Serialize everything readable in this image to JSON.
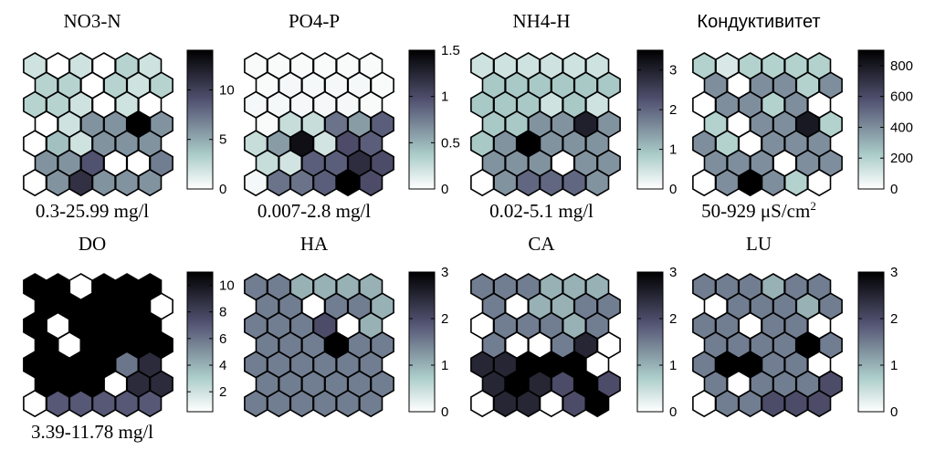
{
  "chart_data": [
    {
      "type": "heatmap",
      "title": "NO3-N",
      "range_label": "0.3-25.99 mg/l",
      "colorbar": {
        "min": 0,
        "max": 14,
        "ticks": [
          0,
          5,
          10
        ],
        "colormap": "bone-reversed"
      },
      "grid": [
        [
          2,
          0,
          2,
          0,
          3,
          2
        ],
        [
          3,
          3,
          0,
          3,
          2,
          3
        ],
        [
          3,
          3,
          2,
          0,
          2,
          0
        ],
        [
          0,
          2,
          6,
          6,
          14,
          6
        ],
        [
          0,
          4,
          2,
          6,
          6,
          6
        ],
        [
          6,
          6,
          9,
          0,
          0,
          7
        ],
        [
          0,
          6,
          11,
          6,
          6,
          6
        ]
      ]
    },
    {
      "type": "heatmap",
      "title": "PO4-P",
      "range_label": "0.007-2.8 mg/l",
      "colorbar": {
        "min": 0,
        "max": 1.5,
        "ticks": [
          0,
          0.5,
          1,
          1.5
        ],
        "colormap": "bone-reversed"
      },
      "grid": [
        [
          0.03,
          0.03,
          0.03,
          0.03,
          0.03,
          0.03
        ],
        [
          0.03,
          0.05,
          0.05,
          0.05,
          0.05,
          0.03
        ],
        [
          0.05,
          0.05,
          0.05,
          0.05,
          0.05,
          0.03
        ],
        [
          0.03,
          0.25,
          0.25,
          0.8,
          0.6,
          0.9
        ],
        [
          0.25,
          0.6,
          1.4,
          0.2,
          1.0,
          0.9
        ],
        [
          0.25,
          0.2,
          0.9,
          0.9,
          1.2,
          1.0
        ],
        [
          0.05,
          0.8,
          0.8,
          0.9,
          1.5,
          1.0
        ]
      ]
    },
    {
      "type": "heatmap",
      "title": "NH4-H",
      "range_label": "0.02-5.1 mg/l",
      "colorbar": {
        "min": 0,
        "max": 3.5,
        "ticks": [
          0,
          1,
          2,
          3
        ],
        "colormap": "bone-reversed"
      },
      "grid": [
        [
          0.5,
          0.5,
          0.5,
          0.5,
          0.5,
          0.5
        ],
        [
          0.9,
          0.9,
          0.9,
          0.9,
          0.9,
          0.9
        ],
        [
          0.9,
          0.9,
          0.9,
          0.5,
          0.9,
          0.5
        ],
        [
          0.9,
          0.9,
          1.5,
          1.5,
          3.0,
          1.5
        ],
        [
          0.9,
          1.5,
          3.5,
          1.5,
          1.5,
          1.5
        ],
        [
          1.5,
          1.5,
          1.5,
          0.0,
          1.5,
          1.5
        ],
        [
          0.0,
          1.5,
          2.0,
          2.0,
          2.0,
          1.5
        ]
      ]
    },
    {
      "type": "heatmap",
      "title": "Кондуктивитет",
      "range_label": "50-929 μS/cm²",
      "colorbar": {
        "min": 0,
        "max": 900,
        "ticks": [
          0,
          200,
          400,
          600,
          800
        ],
        "colormap": "bone-reversed"
      },
      "grid": [
        [
          200,
          100,
          200,
          200,
          200,
          200
        ],
        [
          400,
          0,
          400,
          400,
          200,
          400
        ],
        [
          0,
          400,
          400,
          200,
          400,
          0
        ],
        [
          200,
          0,
          400,
          400,
          800,
          200
        ],
        [
          400,
          200,
          0,
          400,
          400,
          400
        ],
        [
          400,
          400,
          400,
          0,
          400,
          400
        ],
        [
          0,
          400,
          900,
          400,
          200,
          0
        ]
      ]
    },
    {
      "type": "heatmap",
      "title": "DO",
      "range_label": "3.39-11.78 mg/l",
      "colorbar": {
        "min": 0.5,
        "max": 11,
        "ticks": [
          2,
          4,
          6,
          8,
          10
        ],
        "colormap": "bone-reversed"
      },
      "grid": [
        [
          11,
          11,
          0,
          11,
          11,
          11
        ],
        [
          11,
          11,
          11,
          11,
          11,
          0
        ],
        [
          11,
          0,
          11,
          11,
          11,
          11
        ],
        [
          11,
          0,
          11,
          11,
          11,
          11
        ],
        [
          11,
          11,
          11,
          11,
          6,
          9
        ],
        [
          11,
          11,
          11,
          0,
          9,
          9
        ],
        [
          0,
          7,
          7,
          7,
          7,
          7
        ]
      ]
    },
    {
      "type": "heatmap",
      "title": "HA",
      "range_label": "",
      "colorbar": {
        "min": 0,
        "max": 3,
        "ticks": [
          0,
          1,
          2,
          3
        ],
        "colormap": "bone-reversed"
      },
      "grid": [
        [
          1.5,
          1.5,
          1.0,
          1.0,
          1.0,
          1.0
        ],
        [
          1.5,
          1.5,
          0,
          1.5,
          1.5,
          1.0
        ],
        [
          1.5,
          1.5,
          1.5,
          2.0,
          0,
          1.0
        ],
        [
          1.5,
          1.5,
          1.5,
          3.0,
          1.5,
          1.5
        ],
        [
          1.5,
          1.5,
          1.5,
          1.5,
          1.5,
          1.5
        ],
        [
          1.5,
          1.5,
          1.5,
          1.5,
          1.5,
          1.5
        ],
        [
          1.5,
          1.5,
          1.5,
          1.5,
          1.5,
          1.5
        ]
      ]
    },
    {
      "type": "heatmap",
      "title": "CA",
      "range_label": "",
      "colorbar": {
        "min": 0,
        "max": 3,
        "ticks": [
          0,
          1,
          2,
          3
        ],
        "colormap": "bone-reversed"
      },
      "grid": [
        [
          1.5,
          1.5,
          1.5,
          1.0,
          1.0,
          1.0
        ],
        [
          1.5,
          0,
          1.0,
          1.0,
          1.5,
          1.5
        ],
        [
          0,
          1.5,
          1.5,
          1.5,
          1.0,
          1.5
        ],
        [
          1.5,
          0,
          0,
          1.5,
          2.5,
          0
        ],
        [
          2.5,
          2.5,
          3.0,
          3.0,
          3.0,
          0
        ],
        [
          2.5,
          3.0,
          2.5,
          2.0,
          3.0,
          2.0
        ],
        [
          0,
          2.5,
          2.5,
          0,
          2.0,
          3.0
        ]
      ]
    },
    {
      "type": "heatmap",
      "title": "LU",
      "range_label": "",
      "colorbar": {
        "min": 0,
        "max": 3,
        "ticks": [
          0,
          1,
          2,
          3
        ],
        "colormap": "bone-reversed"
      },
      "grid": [
        [
          1.5,
          1.5,
          1.5,
          1.0,
          1.5,
          1.5
        ],
        [
          0,
          1.5,
          1.5,
          1.5,
          1.0,
          1.5
        ],
        [
          1.5,
          1.5,
          0,
          1.5,
          1.5,
          0
        ],
        [
          1.5,
          1.5,
          1.5,
          1.5,
          3.0,
          1.5
        ],
        [
          1.5,
          3.0,
          3.0,
          1.5,
          1.5,
          0
        ],
        [
          1.5,
          0,
          1.5,
          1.5,
          1.5,
          2.0
        ],
        [
          0,
          1.5,
          1.5,
          2.0,
          2.0,
          2.0
        ]
      ]
    }
  ]
}
